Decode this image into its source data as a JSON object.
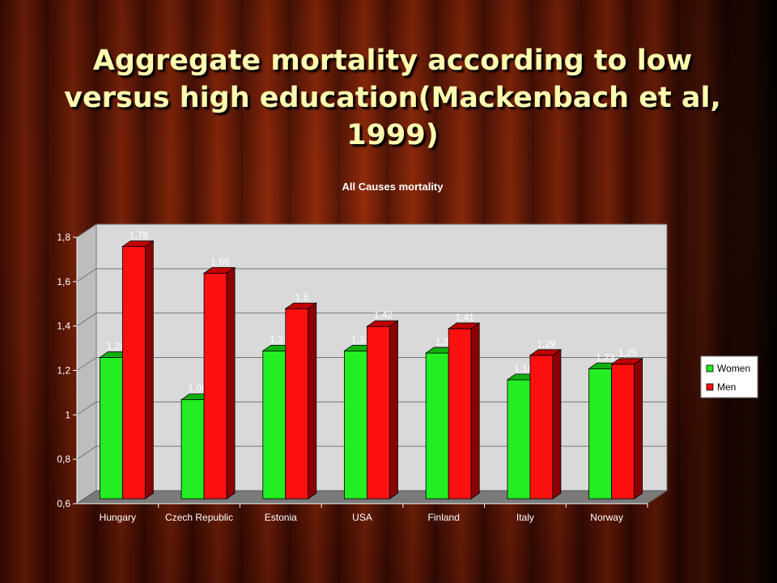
{
  "slide": {
    "title": "Aggregate mortality according to low versus high education(Mackenbach et al, 1999)"
  },
  "colors": {
    "women": "#22ee22",
    "men": "#ff1010",
    "title_text": "#fffab0",
    "chart_text": "#ffffff",
    "panel_back": "#d9d9d9",
    "panel_side": "#bdbdbd",
    "panel_floor": "#7a7a7a"
  },
  "chart_data": {
    "type": "bar",
    "title": "All Causes mortality",
    "categories": [
      "Hungary",
      "Czech Republic",
      "Estonia",
      "USA",
      "Finland",
      "Italy",
      "Norway"
    ],
    "series": [
      {
        "name": "Women",
        "values": [
          1.28,
          1.09,
          1.31,
          1.31,
          1.3,
          1.18,
          1.23
        ],
        "labels": [
          "1,28",
          "1,09",
          "1,31",
          "1,31",
          "1,3",
          "1,18",
          "1,23"
        ]
      },
      {
        "name": "Men",
        "values": [
          1.78,
          1.66,
          1.5,
          1.42,
          1.41,
          1.29,
          1.25
        ],
        "labels": [
          "1,78",
          "1,66",
          "1,5",
          "1,42",
          "1,41",
          "1,29",
          "1,25"
        ]
      }
    ],
    "ylim": [
      0.6,
      1.8
    ],
    "yticks": [
      0.6,
      0.8,
      1,
      1.2,
      1.4,
      1.6,
      1.8
    ],
    "ytick_labels": [
      "0,6",
      "0,8",
      "1",
      "1,2",
      "1,4",
      "1,6",
      "1,8"
    ],
    "grid": true,
    "legend_position": "right",
    "style": "3d"
  }
}
